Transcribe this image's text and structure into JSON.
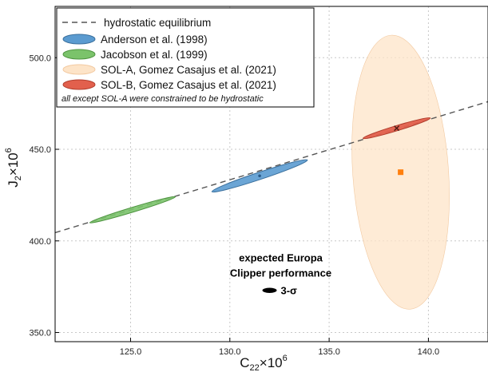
{
  "chart_data": {
    "type": "scatter",
    "xlabel_main": "C",
    "xlabel_sub": "22",
    "xlabel_tail": "×10",
    "xlabel_sup": "6",
    "ylabel_main": "J",
    "ylabel_sub": "2",
    "ylabel_tail": "×10",
    "ylabel_sup": "6",
    "xlim": [
      121.2,
      143.0
    ],
    "ylim": [
      345.0,
      528.0
    ],
    "xticks": [
      125.0,
      130.0,
      135.0,
      140.0
    ],
    "yticks": [
      350.0,
      400.0,
      450.0,
      500.0
    ],
    "xtick_labels": [
      "125.0",
      "130.0",
      "135.0",
      "140.0"
    ],
    "ytick_labels": [
      "350.0",
      "400.0",
      "450.0",
      "500.0"
    ],
    "grid": true,
    "legend_position": "top-left",
    "hydrostatic_line": {
      "name": "hydrostatic equilibrium",
      "x": [
        121.2,
        143.0
      ],
      "y": [
        404.5,
        476.0
      ],
      "color": "#555555",
      "style": "dashed"
    },
    "series": [
      {
        "name": "Anderson et al. (1998)",
        "type": "ellipse",
        "center": [
          131.5,
          435.5
        ],
        "color": "#5b9bd0",
        "edge_color": "#3a6f9c",
        "opacity": 0.9
      },
      {
        "name": "Jacobson et al. (1999)",
        "type": "ellipse",
        "center": [
          125.1,
          417.0
        ],
        "color": "#7bc36b",
        "edge_color": "#4e9440",
        "opacity": 0.9
      },
      {
        "name": "SOL-A, Gomez Casajus et al. (2021)",
        "type": "ellipse",
        "center": [
          138.6,
          437.5
        ],
        "color": "#fde4c8",
        "edge_color": "#f2c9a0",
        "opacity": 0.75,
        "marker_color": "#ff7f0e"
      },
      {
        "name": "SOL-B, Gomez Casajus et al. (2021)",
        "type": "ellipse",
        "center": [
          138.4,
          461.5
        ],
        "color": "#e2604d",
        "edge_color": "#b13d2c",
        "opacity": 0.95
      }
    ],
    "legend_note": "all except SOL-A were constrained to be hydrostatic",
    "annotation": {
      "line1": "expected Europa",
      "line2": "Clipper performance",
      "symbol_label": "3-σ",
      "x": 132.0,
      "y": 373.0
    }
  }
}
